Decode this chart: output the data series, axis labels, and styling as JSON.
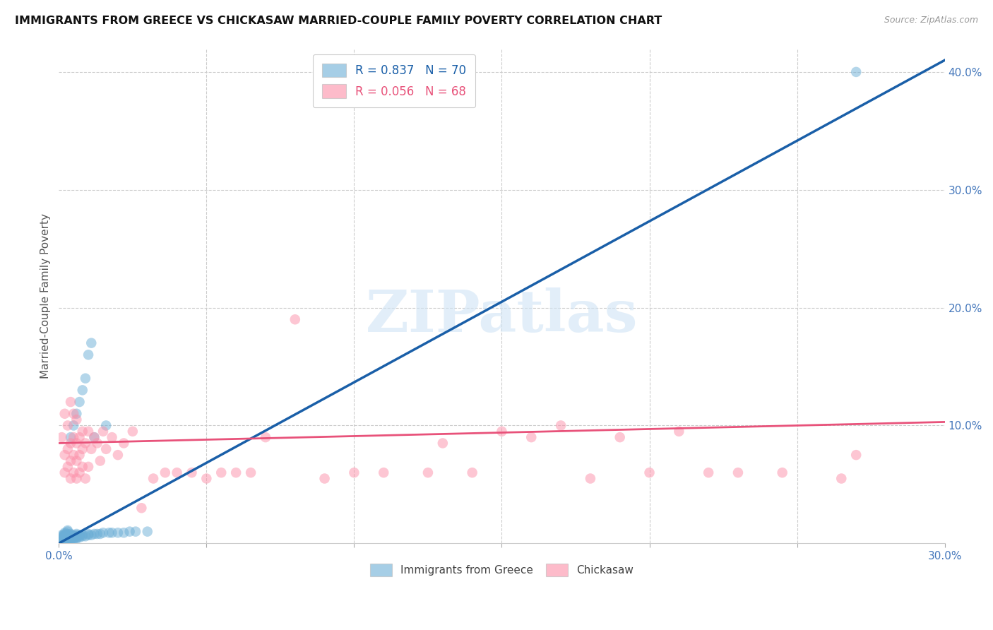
{
  "title": "IMMIGRANTS FROM GREECE VS CHICKASAW MARRIED-COUPLE FAMILY POVERTY CORRELATION CHART",
  "source": "Source: ZipAtlas.com",
  "ylabel_label": "Married-Couple Family Poverty",
  "x_min": 0.0,
  "x_max": 0.3,
  "y_min": 0.0,
  "y_max": 0.42,
  "y_ticks_right": [
    0.1,
    0.2,
    0.3,
    0.4
  ],
  "y_tick_labels_right": [
    "10.0%",
    "20.0%",
    "30.0%",
    "40.0%"
  ],
  "blue_R": 0.837,
  "blue_N": 70,
  "pink_R": 0.056,
  "pink_N": 68,
  "legend_label_blue": "Immigrants from Greece",
  "legend_label_pink": "Chickasaw",
  "blue_color": "#6baed6",
  "pink_color": "#fc8fa8",
  "blue_line_color": "#1a5fa8",
  "pink_line_color": "#e8527a",
  "blue_line_x0": 0.0,
  "blue_line_y0": 0.0,
  "blue_line_x1": 0.3,
  "blue_line_y1": 0.41,
  "pink_line_x0": 0.0,
  "pink_line_y0": 0.085,
  "pink_line_x1": 0.3,
  "pink_line_y1": 0.103,
  "blue_scatter_x": [
    0.001,
    0.001,
    0.001,
    0.001,
    0.001,
    0.001,
    0.002,
    0.002,
    0.002,
    0.002,
    0.002,
    0.002,
    0.002,
    0.002,
    0.003,
    0.003,
    0.003,
    0.003,
    0.003,
    0.003,
    0.003,
    0.003,
    0.003,
    0.004,
    0.004,
    0.004,
    0.004,
    0.004,
    0.004,
    0.004,
    0.005,
    0.005,
    0.005,
    0.005,
    0.005,
    0.005,
    0.006,
    0.006,
    0.006,
    0.006,
    0.006,
    0.006,
    0.007,
    0.007,
    0.007,
    0.007,
    0.008,
    0.008,
    0.008,
    0.009,
    0.009,
    0.01,
    0.01,
    0.01,
    0.011,
    0.011,
    0.012,
    0.012,
    0.013,
    0.014,
    0.015,
    0.016,
    0.017,
    0.018,
    0.02,
    0.022,
    0.024,
    0.026,
    0.03,
    0.27
  ],
  "blue_scatter_y": [
    0.002,
    0.003,
    0.004,
    0.005,
    0.006,
    0.007,
    0.002,
    0.003,
    0.004,
    0.005,
    0.006,
    0.007,
    0.008,
    0.009,
    0.002,
    0.003,
    0.004,
    0.005,
    0.006,
    0.007,
    0.008,
    0.01,
    0.011,
    0.003,
    0.004,
    0.005,
    0.006,
    0.007,
    0.008,
    0.09,
    0.003,
    0.004,
    0.005,
    0.006,
    0.007,
    0.1,
    0.004,
    0.005,
    0.006,
    0.007,
    0.008,
    0.11,
    0.005,
    0.006,
    0.007,
    0.12,
    0.006,
    0.007,
    0.13,
    0.006,
    0.14,
    0.007,
    0.008,
    0.16,
    0.007,
    0.17,
    0.008,
    0.09,
    0.008,
    0.008,
    0.009,
    0.1,
    0.009,
    0.009,
    0.009,
    0.009,
    0.01,
    0.01,
    0.01,
    0.4
  ],
  "pink_scatter_x": [
    0.001,
    0.002,
    0.002,
    0.002,
    0.003,
    0.003,
    0.003,
    0.004,
    0.004,
    0.004,
    0.004,
    0.005,
    0.005,
    0.005,
    0.005,
    0.006,
    0.006,
    0.006,
    0.006,
    0.007,
    0.007,
    0.007,
    0.008,
    0.008,
    0.008,
    0.009,
    0.009,
    0.01,
    0.01,
    0.011,
    0.012,
    0.013,
    0.014,
    0.015,
    0.016,
    0.018,
    0.02,
    0.022,
    0.025,
    0.028,
    0.032,
    0.036,
    0.04,
    0.045,
    0.05,
    0.055,
    0.06,
    0.065,
    0.07,
    0.08,
    0.09,
    0.1,
    0.11,
    0.125,
    0.14,
    0.16,
    0.18,
    0.2,
    0.22,
    0.245,
    0.265,
    0.13,
    0.15,
    0.17,
    0.19,
    0.21,
    0.23,
    0.27
  ],
  "pink_scatter_y": [
    0.09,
    0.06,
    0.075,
    0.11,
    0.065,
    0.08,
    0.1,
    0.055,
    0.07,
    0.085,
    0.12,
    0.06,
    0.075,
    0.09,
    0.11,
    0.055,
    0.07,
    0.085,
    0.105,
    0.06,
    0.075,
    0.09,
    0.065,
    0.08,
    0.095,
    0.055,
    0.085,
    0.065,
    0.095,
    0.08,
    0.09,
    0.085,
    0.07,
    0.095,
    0.08,
    0.09,
    0.075,
    0.085,
    0.095,
    0.03,
    0.055,
    0.06,
    0.06,
    0.06,
    0.055,
    0.06,
    0.06,
    0.06,
    0.09,
    0.19,
    0.055,
    0.06,
    0.06,
    0.06,
    0.06,
    0.09,
    0.055,
    0.06,
    0.06,
    0.06,
    0.055,
    0.085,
    0.095,
    0.1,
    0.09,
    0.095,
    0.06,
    0.075
  ]
}
